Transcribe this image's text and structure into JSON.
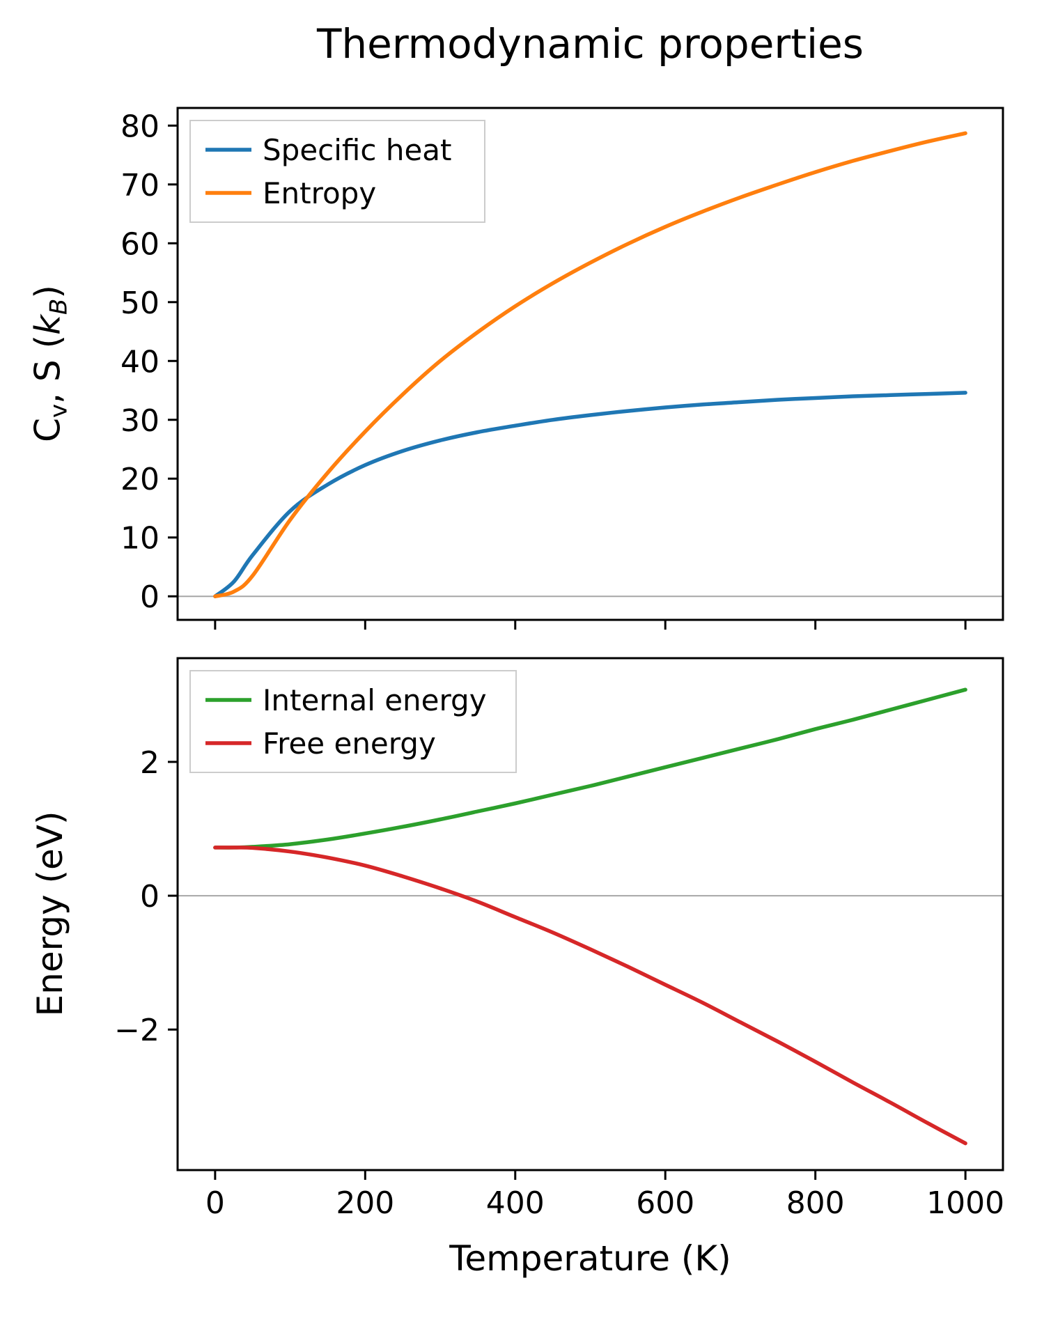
{
  "figure": {
    "title": "Thermodynamic properties",
    "xlabel": "Temperature (K)",
    "background": "#ffffff",
    "zero_line_color": "#a6a6a6",
    "spine_color": "#000000"
  },
  "chart_data": [
    {
      "type": "line",
      "ylabel_text": "Cv, S (kB)",
      "ylabel_parts": [
        {
          "t": "C"
        },
        {
          "t": "v",
          "sub": true
        },
        {
          "t": ", S ("
        },
        {
          "t": "k",
          "italic": true
        },
        {
          "t": "B",
          "sub": true,
          "italic": true
        },
        {
          "t": ")"
        }
      ],
      "xlim": [
        -50,
        1050
      ],
      "ylim": [
        -4,
        83
      ],
      "xticks": [
        0,
        200,
        400,
        600,
        800,
        1000
      ],
      "yticks": [
        0,
        10,
        20,
        30,
        40,
        50,
        60,
        70,
        80
      ],
      "show_x_tick_labels": false,
      "zero_line": true,
      "legend_position": "upper-left",
      "x": [
        0,
        25,
        50,
        100,
        150,
        200,
        250,
        300,
        350,
        400,
        450,
        500,
        550,
        600,
        650,
        700,
        750,
        800,
        850,
        900,
        950,
        1000
      ],
      "series": [
        {
          "name": "Specific heat",
          "color": "#1f77b4",
          "values": [
            0,
            2.5,
            7,
            14.5,
            19,
            22.3,
            24.7,
            26.5,
            27.9,
            29,
            30,
            30.8,
            31.5,
            32.1,
            32.6,
            33,
            33.4,
            33.7,
            34,
            34.2,
            34.4,
            34.6
          ]
        },
        {
          "name": "Entropy",
          "color": "#ff7f0e",
          "values": [
            0,
            0.8,
            3.5,
            13,
            21,
            28,
            34.3,
            40,
            44.9,
            49.3,
            53.2,
            56.7,
            59.9,
            62.8,
            65.4,
            67.8,
            70,
            72.1,
            74,
            75.7,
            77.3,
            78.7
          ]
        }
      ]
    },
    {
      "type": "line",
      "ylabel_text": "Energy (eV)",
      "ylabel_parts": [
        {
          "t": "Energy (eV)"
        }
      ],
      "xlim": [
        -50,
        1050
      ],
      "ylim": [
        -4.1,
        3.55
      ],
      "xticks": [
        0,
        200,
        400,
        600,
        800,
        1000
      ],
      "yticks": [
        -2,
        0,
        2
      ],
      "show_x_tick_labels": true,
      "zero_line": true,
      "legend_position": "upper-left",
      "x": [
        0,
        25,
        50,
        100,
        150,
        200,
        250,
        300,
        350,
        400,
        450,
        500,
        550,
        600,
        650,
        700,
        750,
        800,
        850,
        900,
        950,
        1000
      ],
      "series": [
        {
          "name": "Internal energy",
          "color": "#2ca02c",
          "values": [
            0.72,
            0.72,
            0.73,
            0.77,
            0.84,
            0.93,
            1.03,
            1.14,
            1.26,
            1.38,
            1.51,
            1.64,
            1.78,
            1.92,
            2.06,
            2.2,
            2.34,
            2.49,
            2.63,
            2.78,
            2.93,
            3.08
          ]
        },
        {
          "name": "Free energy",
          "color": "#d62728",
          "values": [
            0.72,
            0.72,
            0.715,
            0.66,
            0.57,
            0.45,
            0.29,
            0.11,
            -0.09,
            -0.32,
            -0.55,
            -0.8,
            -1.06,
            -1.33,
            -1.6,
            -1.89,
            -2.18,
            -2.48,
            -2.79,
            -3.09,
            -3.4,
            -3.7
          ]
        }
      ]
    }
  ]
}
